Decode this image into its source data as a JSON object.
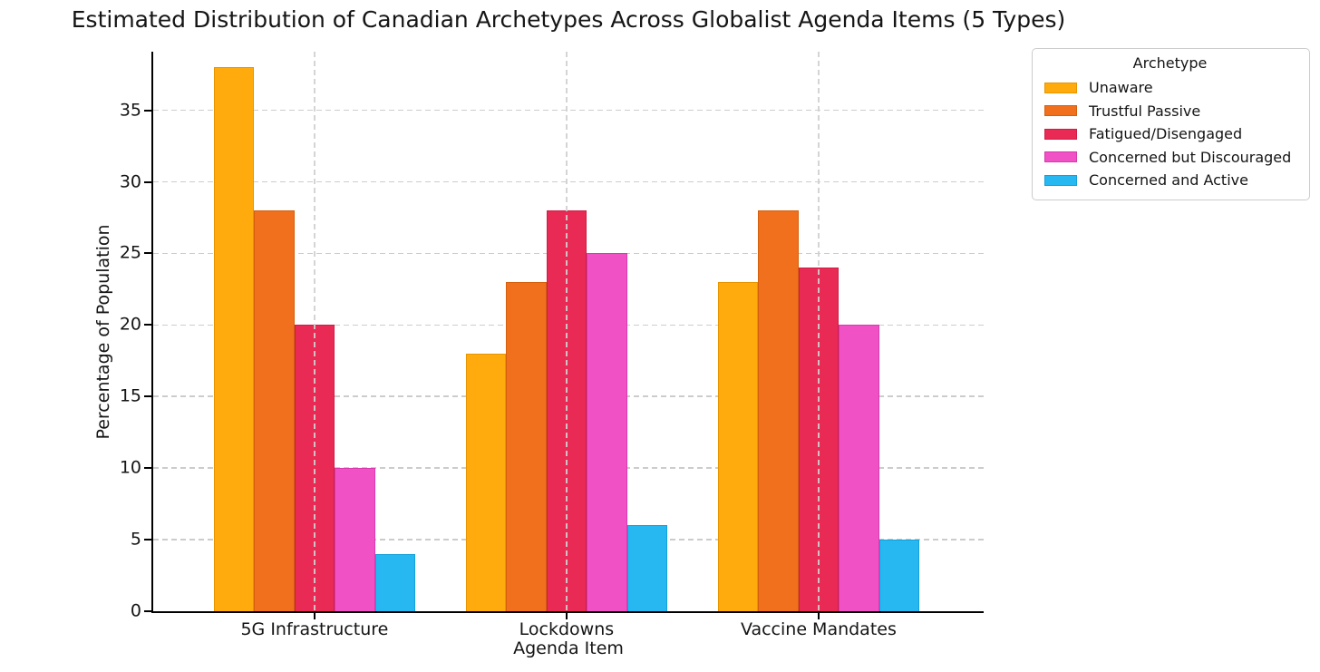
{
  "chart_data": {
    "type": "bar",
    "title": "Estimated Distribution of Canadian Archetypes Across Globalist Agenda Items (5 Types)",
    "xlabel": "Agenda Item",
    "ylabel": "Percentage of Population",
    "categories": [
      "5G Infrastructure",
      "Lockdowns",
      "Vaccine Mandates"
    ],
    "series": [
      {
        "name": "Unaware",
        "color": "#FFAB0E",
        "edge": "#E69500",
        "values": [
          38,
          18,
          23
        ]
      },
      {
        "name": "Trustful Passive",
        "color": "#F0701E",
        "edge": "#D55F0D",
        "values": [
          28,
          23,
          28
        ]
      },
      {
        "name": "Fatigued/Disengaged",
        "color": "#E92A54",
        "edge": "#CC1E45",
        "values": [
          20,
          28,
          24
        ]
      },
      {
        "name": "Concerned but Discouraged",
        "color": "#F052C6",
        "edge": "#D838AC",
        "values": [
          10,
          25,
          20
        ]
      },
      {
        "name": "Concerned and Active",
        "color": "#27B8F2",
        "edge": "#149FD8",
        "values": [
          4,
          6,
          5
        ]
      }
    ],
    "legend": {
      "title": "Archetype"
    },
    "yticks": [
      0,
      5,
      10,
      15,
      20,
      25,
      30,
      35
    ],
    "ylim": [
      0,
      39.1
    ],
    "xlim": [
      -0.64,
      2.655
    ],
    "bar_width": 0.16,
    "grid": {
      "horizontal": true,
      "vertical": true,
      "style": "dashed",
      "color": "#cccccc"
    },
    "axis_color": "#000000",
    "background": "#ffffff"
  }
}
